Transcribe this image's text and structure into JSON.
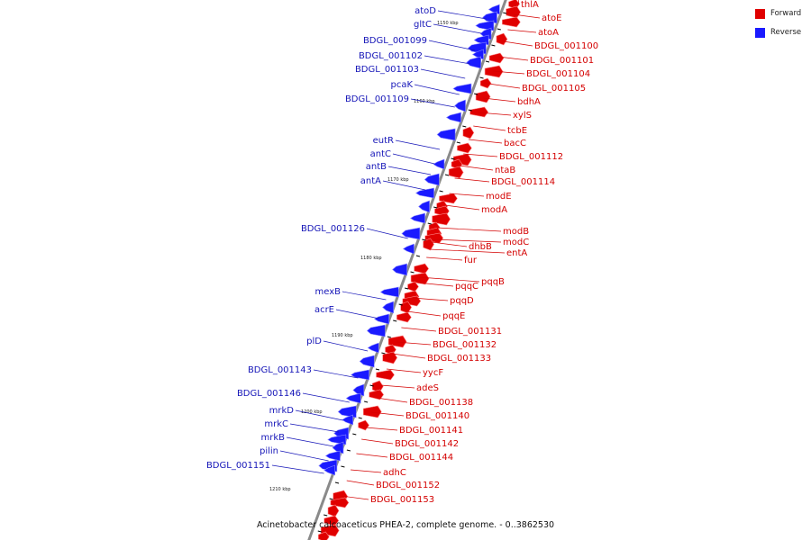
{
  "colors": {
    "forward": "#e00000",
    "reverse": "#1a1aff",
    "forward_label": "#d40000",
    "reverse_label": "#1616b8",
    "axis": "#8a8a8a"
  },
  "legend": [
    {
      "label": "Forward",
      "color": "#e00000"
    },
    {
      "label": "Reverse",
      "color": "#1a1aff"
    }
  ],
  "caption": "Acinetobacter calcoaceticus PHEA-2, complete genome. - 0..3862530",
  "scale_labels": [
    "1150 kbp",
    "1160 kbp",
    "1170 kbp",
    "1180 kbp",
    "1190 kbp",
    "1200 kbp",
    "1210 kbp"
  ],
  "forward_genes": [
    "thlA",
    "atoE",
    "atoA",
    "BDGL_001100",
    "BDGL_001101",
    "BDGL_001104",
    "BDGL_001105",
    "bdhA",
    "xylS",
    "tcbE",
    "bacC",
    "BDGL_001112",
    "ntaB",
    "BDGL_001114",
    "modE",
    "modA",
    "modB",
    "modC",
    "dhbB",
    "entA",
    "fur",
    "pqqB",
    "pqqC",
    "pqqD",
    "pqqE",
    "BDGL_001131",
    "BDGL_001132",
    "BDGL_001133",
    "yycF",
    "adeS",
    "BDGL_001138",
    "BDGL_001140",
    "BDGL_001141",
    "BDGL_001142",
    "BDGL_001144",
    "adhC",
    "BDGL_001152",
    "BDGL_001153"
  ],
  "reverse_genes": [
    "atoD",
    "gltC",
    "BDGL_001099",
    "BDGL_001102",
    "BDGL_001103",
    "pcaK",
    "BDGL_001109",
    "eutR",
    "antC",
    "antB",
    "antA",
    "BDGL_001126",
    "mexB",
    "acrE",
    "plD",
    "BDGL_001143",
    "BDGL_001146",
    "mrkD",
    "mrkC",
    "mrkB",
    "pilin",
    "BDGL_001151"
  ]
}
